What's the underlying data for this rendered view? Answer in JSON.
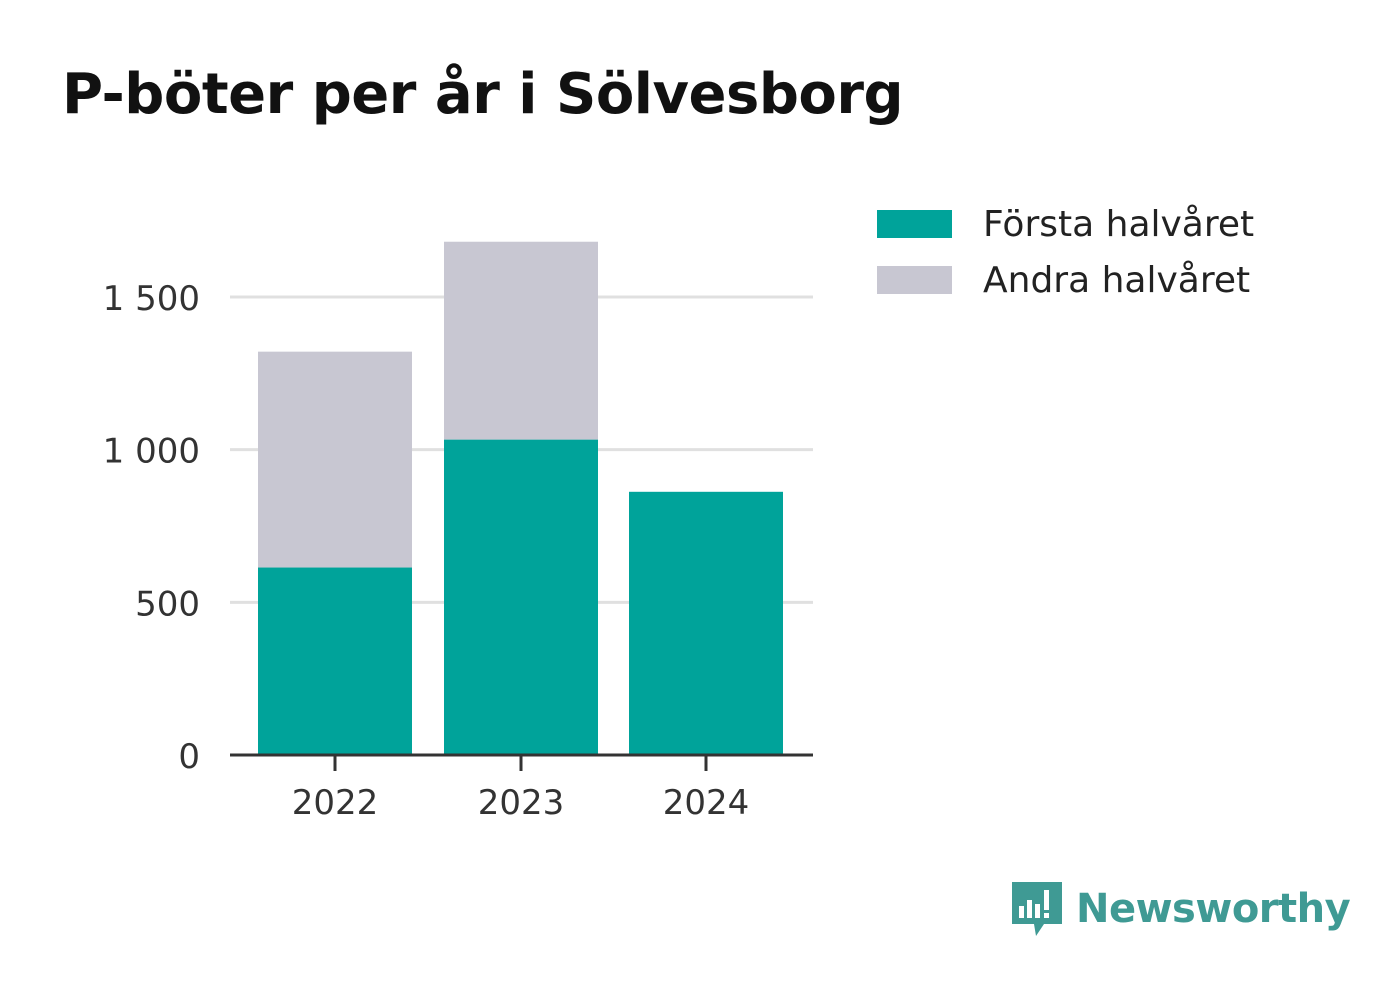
{
  "chart_data": {
    "type": "bar",
    "stacked": true,
    "title": "P-böter per år i Sölvesborg",
    "categories": [
      "2022",
      "2023",
      "2024"
    ],
    "series": [
      {
        "name": "Första halvåret",
        "color": "#00a39a",
        "values": [
          614,
          1033,
          862
        ]
      },
      {
        "name": "Andra halvåret",
        "color": "#c8c7d2",
        "values": [
          707,
          648,
          0
        ]
      }
    ],
    "yticks": [
      "0",
      "500",
      "1 000",
      "1 500"
    ],
    "ytick_values": [
      0,
      500,
      1000,
      1500
    ],
    "ylim": [
      0,
      1700
    ],
    "grid": true,
    "legend": "top-right"
  },
  "brand": {
    "name": "Newsworthy",
    "icon": "newsworthy-logo-icon",
    "color": "#3f9a94"
  }
}
